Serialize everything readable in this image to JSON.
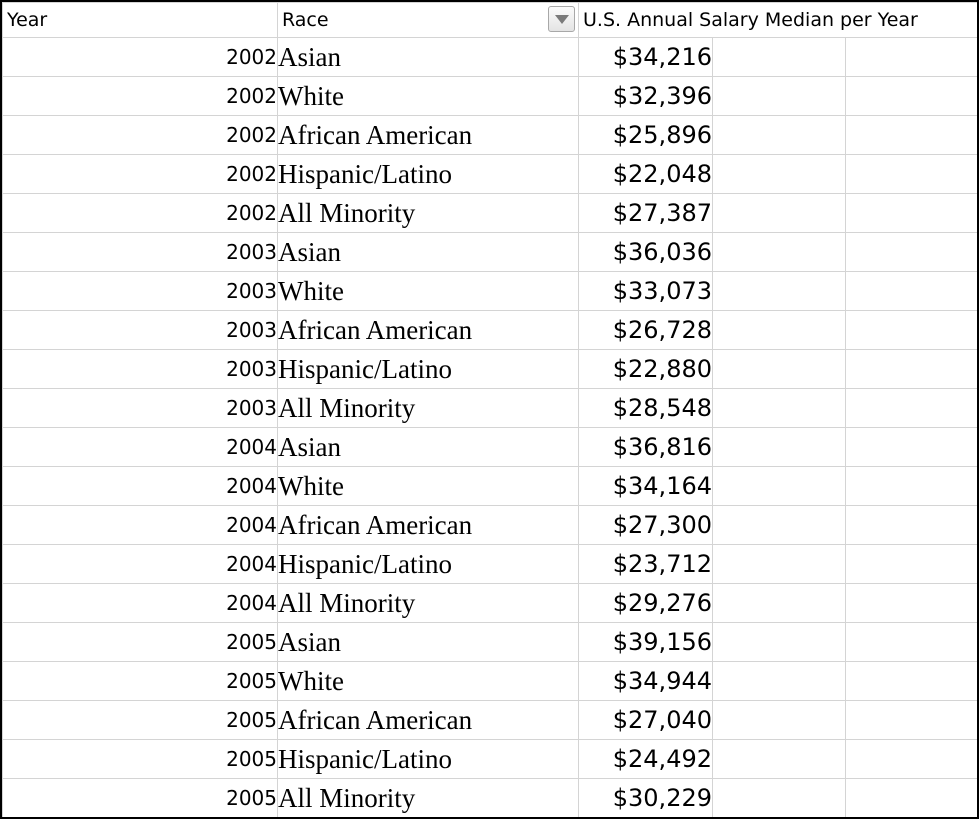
{
  "headers": {
    "year": "Year",
    "race": "Race",
    "salary": "U.S. Annual Salary Median per Year"
  },
  "rows": [
    {
      "year": "2002",
      "race": "Asian",
      "salary": "$34,216"
    },
    {
      "year": "2002",
      "race": "White",
      "salary": "$32,396"
    },
    {
      "year": "2002",
      "race": "African American",
      "salary": "$25,896"
    },
    {
      "year": "2002",
      "race": "Hispanic/Latino",
      "salary": "$22,048"
    },
    {
      "year": "2002",
      "race": "All Minority",
      "salary": "$27,387"
    },
    {
      "year": "2003",
      "race": "Asian",
      "salary": "$36,036"
    },
    {
      "year": "2003",
      "race": "White",
      "salary": "$33,073"
    },
    {
      "year": "2003",
      "race": "African American",
      "salary": "$26,728"
    },
    {
      "year": "2003",
      "race": "Hispanic/Latino",
      "salary": "$22,880"
    },
    {
      "year": "2003",
      "race": "All Minority",
      "salary": "$28,548"
    },
    {
      "year": "2004",
      "race": "Asian",
      "salary": "$36,816"
    },
    {
      "year": "2004",
      "race": "White",
      "salary": "$34,164"
    },
    {
      "year": "2004",
      "race": "African American",
      "salary": "$27,300"
    },
    {
      "year": "2004",
      "race": "Hispanic/Latino",
      "salary": "$23,712"
    },
    {
      "year": "2004",
      "race": "All Minority",
      "salary": "$29,276"
    },
    {
      "year": "2005",
      "race": "Asian",
      "salary": "$39,156"
    },
    {
      "year": "2005",
      "race": "White",
      "salary": "$34,944"
    },
    {
      "year": "2005",
      "race": "African American",
      "salary": "$27,040"
    },
    {
      "year": "2005",
      "race": "Hispanic/Latino",
      "salary": "$24,492"
    },
    {
      "year": "2005",
      "race": "All Minority",
      "salary": "$30,229"
    }
  ],
  "icons": {
    "filter": "filter-dropdown-icon"
  }
}
